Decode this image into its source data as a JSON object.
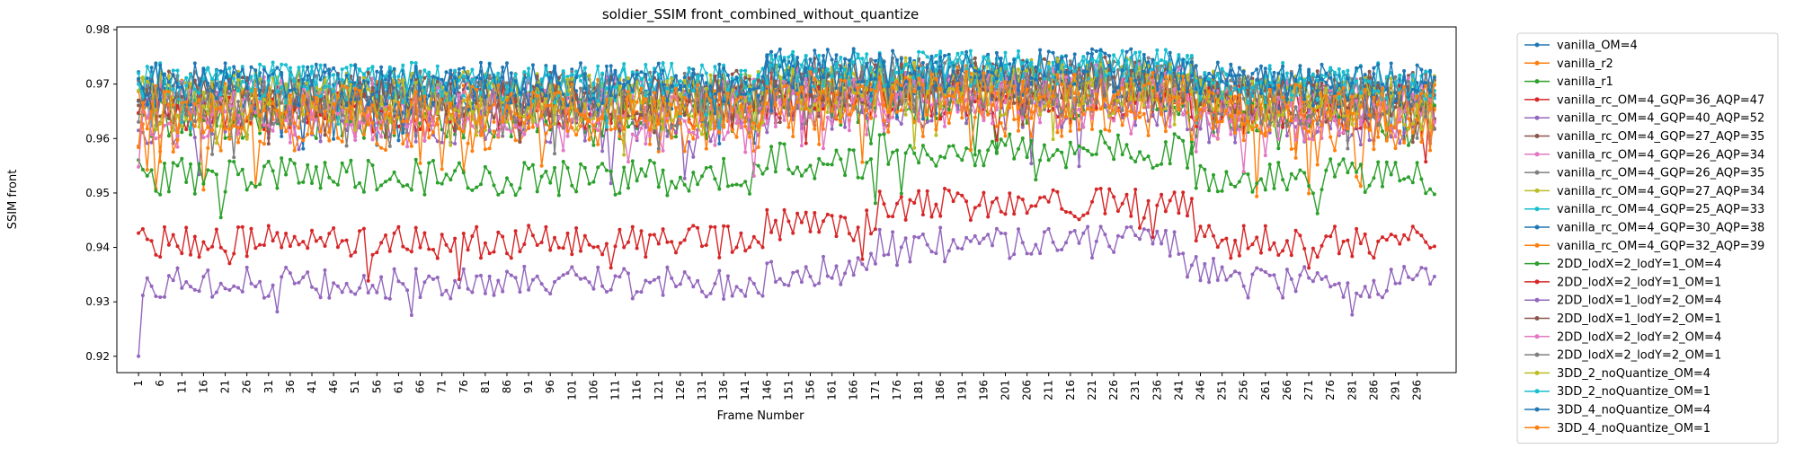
{
  "chart_data": {
    "type": "line",
    "title": "soldier_SSIM front_combined_without_quantize",
    "xlabel": "Frame Number",
    "ylabel": "SSIM front",
    "xlim": [
      -4,
      305
    ],
    "ylim": [
      0.917,
      0.9805
    ],
    "x_ticks": [
      1,
      6,
      11,
      16,
      21,
      26,
      31,
      36,
      41,
      46,
      51,
      56,
      61,
      66,
      71,
      76,
      81,
      86,
      91,
      96,
      101,
      106,
      111,
      116,
      121,
      126,
      131,
      136,
      141,
      146,
      151,
      156,
      161,
      166,
      171,
      176,
      181,
      186,
      191,
      196,
      201,
      206,
      211,
      216,
      221,
      226,
      231,
      236,
      241,
      246,
      251,
      256,
      261,
      266,
      271,
      276,
      281,
      286,
      291,
      296
    ],
    "y_ticks": [
      0.92,
      0.93,
      0.94,
      0.95,
      0.96,
      0.97,
      0.98
    ],
    "grid": false,
    "legend_position": "outside-right",
    "x": {
      "start": 1,
      "end": 300
    },
    "series": [
      {
        "name": "vanilla_OM=4",
        "color": "#1f77b4",
        "base": 0.969,
        "amp": 0.004,
        "shape": "flat",
        "seed": 11
      },
      {
        "name": "vanilla_r2",
        "color": "#ff7f0e",
        "base": 0.9665,
        "amp": 0.0045,
        "shape": "flat",
        "seed": 12
      },
      {
        "name": "vanilla_r1",
        "color": "#2ca02c",
        "base": 0.964,
        "amp": 0.004,
        "shape": "flat",
        "seed": 13
      },
      {
        "name": "vanilla_rc_OM=4_GQP=36_AQP=47",
        "color": "#d62728",
        "base": 0.9655,
        "amp": 0.0045,
        "shape": "flat",
        "seed": 14
      },
      {
        "name": "vanilla_rc_OM=4_GQP=40_AQP=52",
        "color": "#9467bd",
        "base": 0.964,
        "amp": 0.005,
        "shape": "flat",
        "seed": 15
      },
      {
        "name": "vanilla_rc_OM=4_GQP=27_AQP=35",
        "color": "#8c564b",
        "base": 0.969,
        "amp": 0.0035,
        "shape": "flat",
        "seed": 16
      },
      {
        "name": "vanilla_rc_OM=4_GQP=26_AQP=34",
        "color": "#e377c2",
        "base": 0.967,
        "amp": 0.0045,
        "shape": "flat",
        "seed": 17
      },
      {
        "name": "vanilla_rc_OM=4_GQP=26_AQP=35",
        "color": "#7f7f7f",
        "base": 0.9685,
        "amp": 0.004,
        "shape": "flat",
        "seed": 18
      },
      {
        "name": "vanilla_rc_OM=4_GQP=27_AQP=34",
        "color": "#bcbd22",
        "base": 0.968,
        "amp": 0.0045,
        "shape": "flat",
        "seed": 19
      },
      {
        "name": "vanilla_rc_OM=4_GQP=25_AQP=33",
        "color": "#17becf",
        "base": 0.9705,
        "amp": 0.0035,
        "shape": "flat",
        "seed": 20
      },
      {
        "name": "vanilla_rc_OM=4_GQP=30_AQP=38",
        "color": "#1f77b4",
        "base": 0.969,
        "amp": 0.0045,
        "shape": "flat",
        "seed": 21
      },
      {
        "name": "vanilla_rc_OM=4_GQP=32_AQP=39",
        "color": "#ff7f0e",
        "base": 0.963,
        "amp": 0.0055,
        "shape": "flat",
        "seed": 22
      },
      {
        "name": "2DD_lodX=2_lodY=1_OM=4",
        "color": "#2ca02c",
        "base": 0.953,
        "amp": 0.0035,
        "shape": "green",
        "seed": 23
      },
      {
        "name": "2DD_lodX=2_lodY=1_OM=1",
        "color": "#d62728",
        "base": 0.941,
        "amp": 0.003,
        "shape": "red",
        "seed": 24
      },
      {
        "name": "2DD_lodX=1_lodY=2_OM=4",
        "color": "#9467bd",
        "base": 0.9335,
        "amp": 0.003,
        "shape": "purple",
        "seed": 25
      },
      {
        "name": "2DD_lodX=1_lodY=2_OM=1",
        "color": "#8c564b",
        "base": 0.9675,
        "amp": 0.004,
        "shape": "flat",
        "seed": 26
      },
      {
        "name": "2DD_lodX=2_lodY=2_OM=4",
        "color": "#e377c2",
        "base": 0.9645,
        "amp": 0.005,
        "shape": "flat",
        "seed": 27
      },
      {
        "name": "2DD_lodX=2_lodY=2_OM=1",
        "color": "#7f7f7f",
        "base": 0.9665,
        "amp": 0.0045,
        "shape": "flat",
        "seed": 28
      },
      {
        "name": "3DD_2_noQuantize_OM=4",
        "color": "#bcbd22",
        "base": 0.9665,
        "amp": 0.005,
        "shape": "flat",
        "seed": 29
      },
      {
        "name": "3DD_2_noQuantize_OM=1",
        "color": "#17becf",
        "base": 0.97,
        "amp": 0.0035,
        "shape": "flat",
        "seed": 30
      },
      {
        "name": "3DD_4_noQuantize_OM=4",
        "color": "#1f77b4",
        "base": 0.97,
        "amp": 0.004,
        "shape": "flat",
        "seed": 31
      },
      {
        "name": "3DD_4_noQuantize_OM=1",
        "color": "#ff7f0e",
        "base": 0.9655,
        "amp": 0.0045,
        "shape": "flat",
        "seed": 32
      }
    ]
  }
}
